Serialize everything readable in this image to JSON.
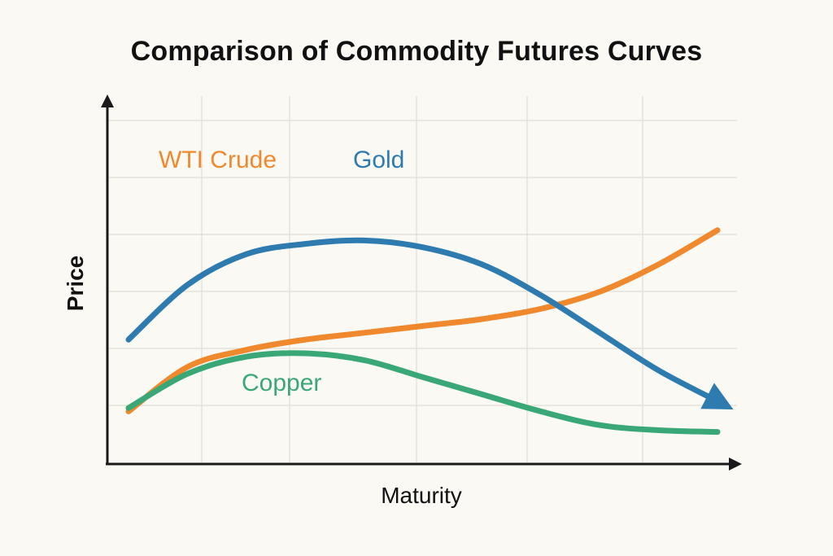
{
  "chart_data": {
    "type": "line",
    "title": "Comparison of Commodity Futures Curves",
    "xlabel": "Maturity",
    "ylabel": "Price",
    "grid": true,
    "legend": "inline labels",
    "xlim": [
      0,
      10
    ],
    "ylim": [
      0,
      10
    ],
    "x": [
      0,
      1,
      2,
      3,
      4,
      5,
      6,
      7,
      8,
      9,
      10
    ],
    "series": [
      {
        "name": "WTI Crude",
        "color": "#f0892e",
        "values": [
          1.3,
          2.6,
          3.1,
          3.4,
          3.6,
          3.8,
          4.0,
          4.3,
          4.8,
          5.6,
          6.6
        ]
      },
      {
        "name": "Gold",
        "color": "#2e7bb0",
        "values": [
          3.4,
          5.0,
          5.9,
          6.2,
          6.3,
          6.1,
          5.6,
          4.7,
          3.6,
          2.5,
          1.6
        ]
      },
      {
        "name": "Copper",
        "color": "#3aa777",
        "values": [
          1.4,
          2.4,
          2.9,
          3.0,
          2.8,
          2.3,
          1.8,
          1.3,
          0.9,
          0.75,
          0.7
        ]
      }
    ]
  }
}
